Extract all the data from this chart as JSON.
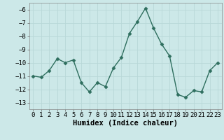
{
  "x": [
    0,
    1,
    2,
    3,
    4,
    5,
    6,
    7,
    8,
    9,
    10,
    11,
    12,
    13,
    14,
    15,
    16,
    17,
    18,
    19,
    20,
    21,
    22,
    23
  ],
  "y": [
    -11.0,
    -11.1,
    -10.6,
    -9.7,
    -10.0,
    -9.8,
    -11.5,
    -12.2,
    -11.5,
    -11.8,
    -10.4,
    -9.6,
    -7.8,
    -6.9,
    -5.9,
    -7.4,
    -8.6,
    -9.5,
    -12.4,
    -12.6,
    -12.1,
    -12.2,
    -10.6,
    -10.0
  ],
  "line_color": "#2e6e5e",
  "marker": "D",
  "marker_size": 2.5,
  "xlabel": "Humidex (Indice chaleur)",
  "xlim": [
    -0.5,
    23.5
  ],
  "ylim": [
    -13.5,
    -5.5
  ],
  "yticks": [
    -13,
    -12,
    -11,
    -10,
    -9,
    -8,
    -7,
    -6
  ],
  "xticks": [
    0,
    1,
    2,
    3,
    4,
    5,
    6,
    7,
    8,
    9,
    10,
    11,
    12,
    13,
    14,
    15,
    16,
    17,
    18,
    19,
    20,
    21,
    22,
    23
  ],
  "grid_color": "#b8d8d8",
  "bg_color": "#cce8e8",
  "tick_fontsize": 6.5,
  "label_fontsize": 7.5,
  "line_width": 1.0
}
